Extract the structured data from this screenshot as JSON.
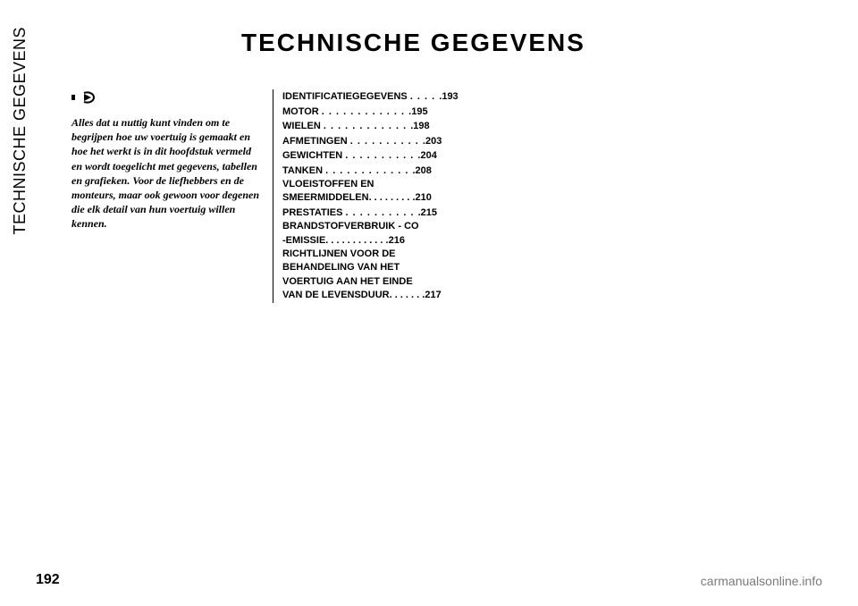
{
  "sidebar": {
    "label": "TECHNISCHE GEGEVENS"
  },
  "title": "TECHNISCHE GEGEVENS",
  "intro": {
    "text": "Alles dat u nuttig kunt vinden om te begrijpen hoe uw voertuig is gemaakt en hoe het werkt is in dit hoofdstuk vermeld en wordt toegelicht met gegevens, tabellen en grafieken. Voor de liefhebbers en de monteurs, maar ook gewoon voor degenen die elk detail van hun voertuig willen kennen."
  },
  "toc": [
    {
      "label": "IDENTIFICATIEGEGEVENS",
      "page": "193"
    },
    {
      "label": "MOTOR",
      "page": "195"
    },
    {
      "label": "WIELEN",
      "page": "198"
    },
    {
      "label": "AFMETINGEN",
      "page": "203"
    },
    {
      "label": "GEWICHTEN",
      "page": "204"
    },
    {
      "label": "TANKEN",
      "page": "208"
    },
    {
      "label": "VLOEISTOFFEN EN SMEERMIDDELEN",
      "page": "210",
      "multi": true
    },
    {
      "label": "PRESTATIES",
      "page": "215"
    },
    {
      "label": "BRANDSTOFVERBRUIK - CO -EMISSIE",
      "page": "216",
      "multi": true
    },
    {
      "label": "RICHTLIJNEN VOOR DE BEHANDELING VAN HET VOERTUIG AAN HET EINDE VAN DE LEVENSDUUR",
      "page": "217",
      "multi": true
    }
  ],
  "pageNumber": "192",
  "footer": {
    "link": "carmanualsonline.info"
  }
}
